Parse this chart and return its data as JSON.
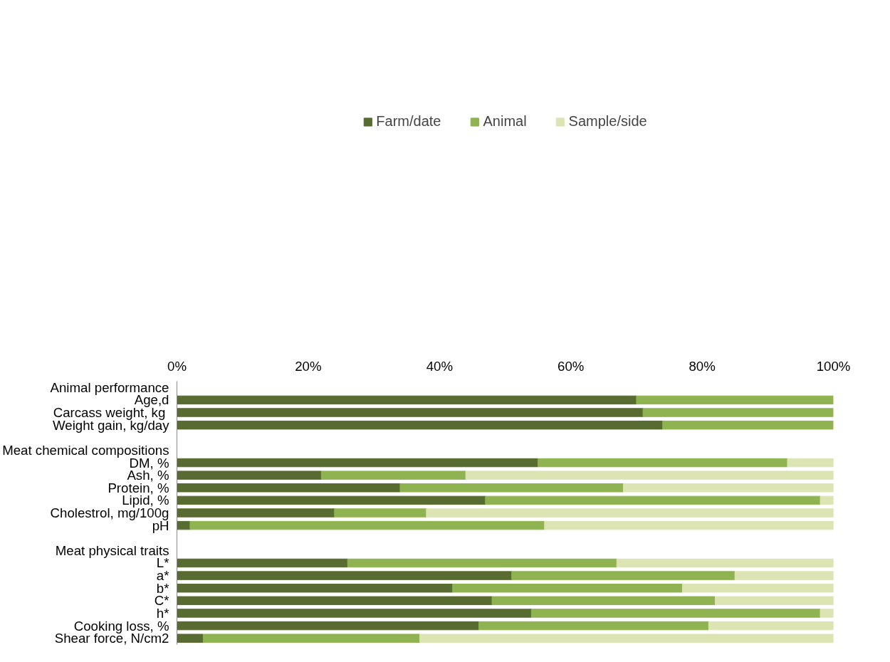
{
  "chart_data": {
    "type": "bar",
    "orientation": "horizontal",
    "stacked": true,
    "categories": [
      "Animal performance",
      "Age,d",
      "Carcass weight,  kg",
      "Weight gain, kg/day",
      null,
      "Meat chemical compositions",
      "DM, %",
      "Ash, %",
      "Protein, %",
      "Lipid, %",
      "Cholestrol, mg/100g",
      "pH",
      null,
      "Meat physical traits",
      "L*",
      "a*",
      "b*",
      "C*",
      "h*",
      "Cooking loss, %",
      "Shear force, N/cm2"
    ],
    "series": [
      {
        "name": "Farm/date",
        "color": "#586b30",
        "values": [
          null,
          70,
          71,
          74,
          null,
          null,
          55,
          22,
          34,
          47,
          24,
          2,
          null,
          null,
          26,
          51,
          42,
          48,
          54,
          46,
          4
        ]
      },
      {
        "name": "Animal",
        "color": "#8fb350",
        "values": [
          null,
          30,
          29,
          26,
          null,
          null,
          38,
          22,
          34,
          51,
          14,
          54,
          null,
          null,
          41,
          34,
          35,
          34,
          44,
          35,
          33
        ]
      },
      {
        "name": "Sample/side",
        "color": "#dde4b4",
        "values": [
          null,
          0,
          0,
          0,
          null,
          null,
          7,
          56,
          32,
          2,
          62,
          44,
          null,
          null,
          33,
          15,
          23,
          18,
          2,
          19,
          63
        ]
      }
    ],
    "xlim": [
      0,
      100
    ],
    "xticks": [
      {
        "value": 0,
        "label": "0%"
      },
      {
        "value": 20,
        "label": "20%"
      },
      {
        "value": 40,
        "label": "40%"
      },
      {
        "value": 60,
        "label": "60%"
      },
      {
        "value": 80,
        "label": "80%"
      },
      {
        "value": 100,
        "label": "100%"
      }
    ],
    "grid": false,
    "legend": "top"
  }
}
